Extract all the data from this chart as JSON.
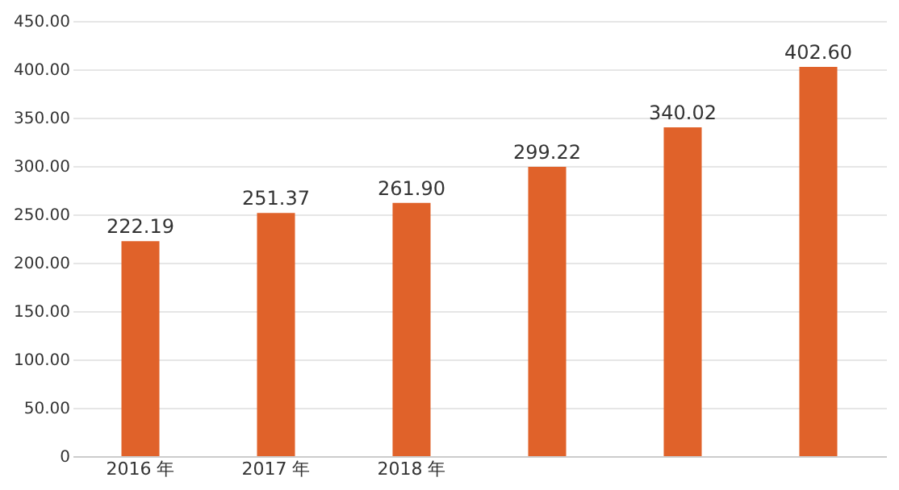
{
  "chart_data": {
    "type": "bar",
    "categories": [
      "2016 年",
      "2017 年",
      "2018 年",
      null,
      null,
      null
    ],
    "values": [
      222.19,
      251.37,
      261.9,
      299.22,
      340.02,
      402.6
    ],
    "value_labels": [
      "222.19",
      "251.37",
      "261.90",
      "299.22",
      "340.02",
      "402.60"
    ],
    "color": "#e0622a",
    "ylim": [
      0,
      450
    ],
    "yticks": [
      0,
      {
        "value": 50,
        "label": "50.00"
      },
      {
        "value": 100,
        "label": "100.00"
      },
      {
        "value": 150,
        "label": "150.00"
      },
      {
        "value": 200,
        "label": "200.00"
      },
      {
        "value": 250,
        "label": "250.00"
      },
      {
        "value": 300,
        "label": "300.00"
      },
      {
        "value": 350,
        "label": "350.00"
      },
      {
        "value": 400,
        "label": "400.00"
      },
      {
        "value": 450,
        "label": "450.00"
      }
    ],
    "grid": "y"
  }
}
